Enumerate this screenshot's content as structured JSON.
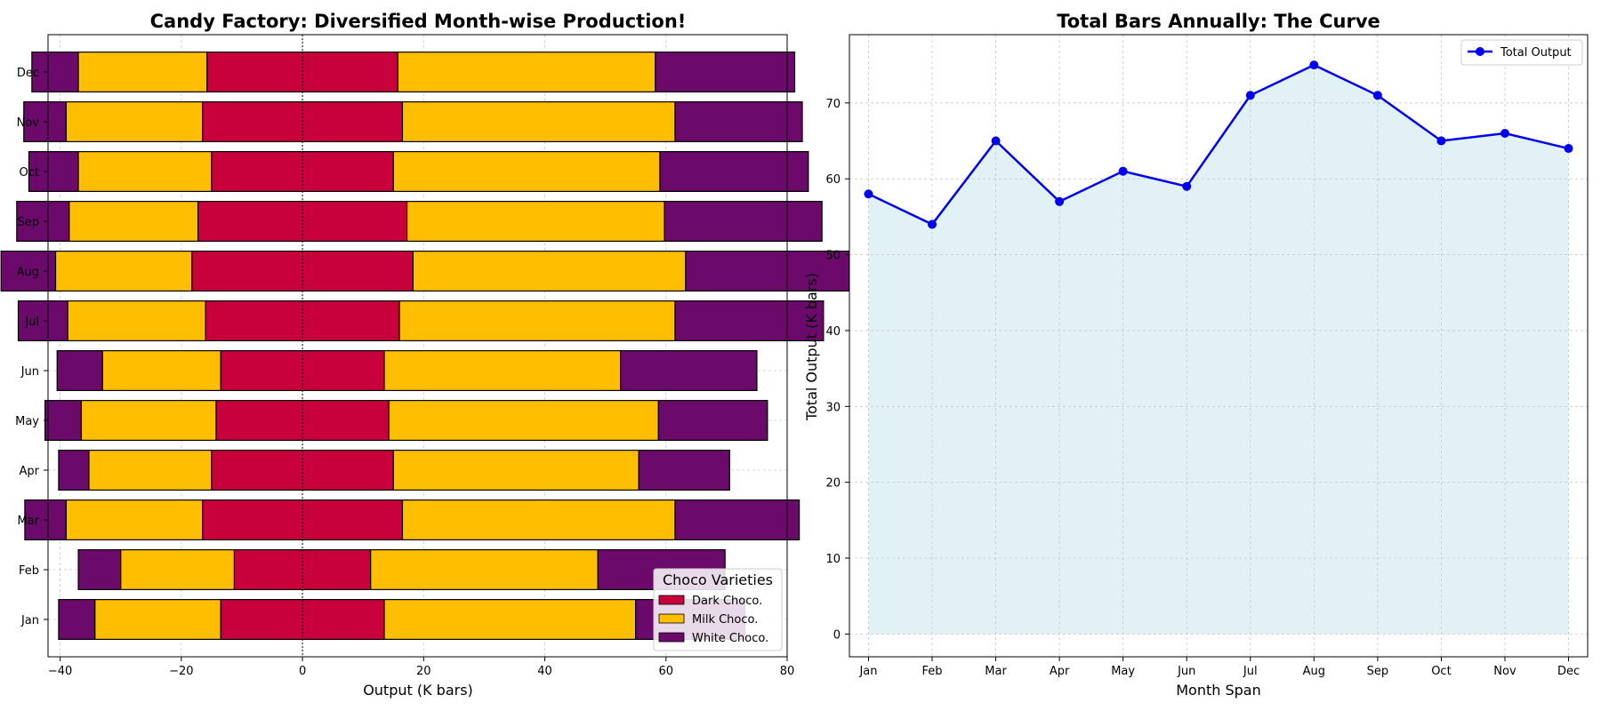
{
  "chart_data": [
    {
      "type": "bar",
      "orientation": "horizontal-diverging",
      "title": "Candy Factory: Diversified Month-wise Production!",
      "xlabel": "Output (K bars)",
      "ylabel": "",
      "xlim": [
        -42,
        80
      ],
      "xticks": [
        -40,
        -20,
        0,
        20,
        40,
        60,
        80
      ],
      "categories": [
        "Jan",
        "Feb",
        "Mar",
        "Apr",
        "May",
        "Jun",
        "Jul",
        "Aug",
        "Sep",
        "Oct",
        "Nov",
        "Dec"
      ],
      "series": [
        {
          "name": "Dark Choco.",
          "color": "#c8003c",
          "values": [
            27,
            22.5,
            33,
            30,
            28.5,
            27,
            32,
            36.5,
            34.5,
            30,
            33,
            31.5
          ]
        },
        {
          "name": "Milk Choco.",
          "color": "#ffbf00",
          "values": [
            41.5,
            37.5,
            45,
            40.5,
            44.5,
            39,
            45.5,
            45,
            42.5,
            44,
            45,
            42.5
          ]
        },
        {
          "name": "White Choco.",
          "color": "#6b0a6b",
          "values": [
            18,
            21,
            20.5,
            15,
            18,
            22.5,
            24.5,
            27,
            26,
            24.5,
            21,
            23
          ]
        }
      ],
      "legend": {
        "title": "Choco Varieties",
        "position": "lower-right"
      },
      "grid": true
    },
    {
      "type": "area",
      "title": "Total Bars Annually: The Curve",
      "xlabel": "Month Span",
      "ylabel": "Total Output (K bars)",
      "ylim": [
        -3,
        79
      ],
      "yticks": [
        0,
        10,
        20,
        30,
        40,
        50,
        60,
        70
      ],
      "categories": [
        "Jan",
        "Feb",
        "Mar",
        "Apr",
        "May",
        "Jun",
        "Jul",
        "Aug",
        "Sep",
        "Oct",
        "Nov",
        "Dec"
      ],
      "series": [
        {
          "name": "Total Output",
          "color": "#0000ee",
          "fill": "#add8e6",
          "values": [
            58,
            54,
            65,
            57,
            61,
            59,
            71,
            75,
            71,
            65,
            66,
            64
          ]
        }
      ],
      "legend": {
        "position": "top-right"
      },
      "grid": true
    }
  ]
}
